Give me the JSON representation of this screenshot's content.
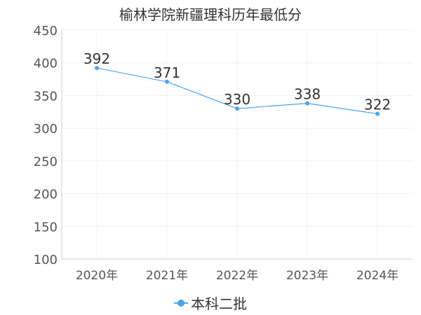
{
  "chart_data": {
    "type": "line",
    "title": "榆林学院新疆理科历年最低分",
    "xlabel": "",
    "ylabel": "",
    "categories": [
      "2020年",
      "2021年",
      "2022年",
      "2023年",
      "2024年"
    ],
    "series": [
      {
        "name": "本科二批",
        "values": [
          392,
          371,
          330,
          338,
          322
        ],
        "color": "#4aa3f0"
      }
    ],
    "ylim": [
      100,
      450
    ],
    "yticks": [
      100,
      150,
      200,
      250,
      300,
      350,
      400,
      450
    ],
    "grid": true,
    "legend": "bottom"
  }
}
